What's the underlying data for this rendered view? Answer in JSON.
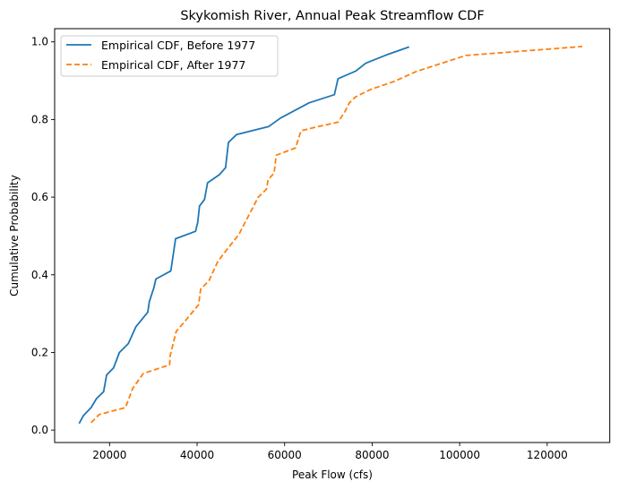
{
  "chart_data": {
    "type": "line",
    "title": "Skykomish River, Annual Peak Streamflow CDF",
    "xlabel": "Peak Flow (cfs)",
    "ylabel": "Cumulative Probability",
    "xlim": [
      7450,
      134300
    ],
    "ylim": [
      -0.032,
      1.034
    ],
    "x_ticks": [
      20000,
      40000,
      60000,
      80000,
      100000,
      120000
    ],
    "x_tick_labels": [
      "20000",
      "40000",
      "60000",
      "80000",
      "100000",
      "120000"
    ],
    "y_ticks": [
      0.0,
      0.2,
      0.4,
      0.6,
      0.8,
      1.0
    ],
    "y_tick_labels": [
      "0.0",
      "0.2",
      "0.4",
      "0.6",
      "0.8",
      "1.0"
    ],
    "grid": false,
    "legend_position": "top-left",
    "series": [
      {
        "name": "Empirical CDF, Before 1977",
        "color": "#1f77b4",
        "linestyle": "solid",
        "x": [
          13040,
          14060,
          15780,
          17010,
          18650,
          19320,
          20900,
          22250,
          24300,
          26020,
          28740,
          29090,
          30110,
          30580,
          34000,
          35090,
          39650,
          40140,
          40550,
          41700,
          42400,
          45100,
          46500,
          47160,
          49000,
          56380,
          59100,
          65590,
          71380,
          72200,
          76300,
          78550,
          83660,
          88450
        ],
        "y": [
          0.017,
          0.038,
          0.058,
          0.081,
          0.099,
          0.142,
          0.16,
          0.2,
          0.223,
          0.266,
          0.304,
          0.331,
          0.366,
          0.389,
          0.41,
          0.493,
          0.512,
          0.535,
          0.577,
          0.594,
          0.637,
          0.658,
          0.676,
          0.741,
          0.761,
          0.782,
          0.804,
          0.843,
          0.864,
          0.905,
          0.925,
          0.945,
          0.968,
          0.987
        ]
      },
      {
        "name": "Empirical CDF, After 1977",
        "color": "#ff7f0e",
        "linestyle": "dashed",
        "x": [
          15780,
          17620,
          23620,
          25320,
          27720,
          33720,
          33860,
          35230,
          37280,
          40350,
          40820,
          42720,
          44770,
          47160,
          49560,
          50790,
          53980,
          55820,
          56230,
          57600,
          58080,
          62500,
          63750,
          66600,
          72200,
          73780,
          74800,
          76170,
          79570,
          85030,
          90150,
          101410,
          128020
        ],
        "y": [
          0.019,
          0.04,
          0.058,
          0.108,
          0.146,
          0.168,
          0.192,
          0.254,
          0.281,
          0.323,
          0.363,
          0.385,
          0.435,
          0.47,
          0.504,
          0.531,
          0.6,
          0.62,
          0.645,
          0.662,
          0.708,
          0.727,
          0.771,
          0.779,
          0.793,
          0.82,
          0.843,
          0.858,
          0.877,
          0.898,
          0.924,
          0.965,
          0.988
        ]
      }
    ]
  }
}
